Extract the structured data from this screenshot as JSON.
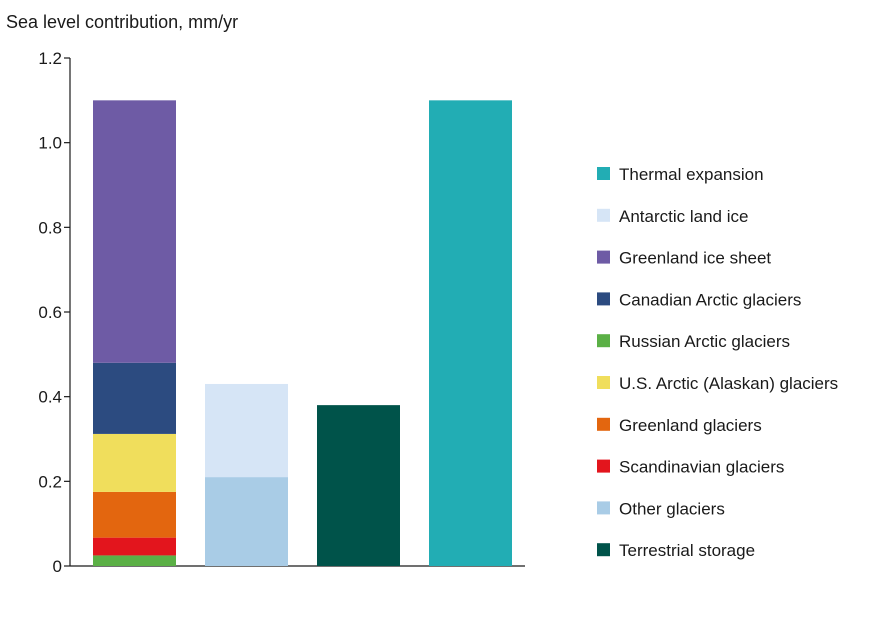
{
  "chart_data": {
    "type": "bar",
    "stacked": true,
    "title": "Sea level contribution, mm/yr",
    "ylabel": "",
    "xlabel": "",
    "ylim": [
      0,
      1.2
    ],
    "yticks": [
      "0",
      "0.2",
      "0.4",
      "0.6",
      "0.8",
      "1.0",
      "1.2"
    ],
    "ytick_values": [
      0,
      0.2,
      0.4,
      0.6,
      0.8,
      1.0,
      1.2
    ],
    "grid": false,
    "legend_position": "right",
    "legend": [
      {
        "name": "Thermal expansion",
        "color": "#22adb4"
      },
      {
        "name": "Antarctic land ice",
        "color": "#d6e5f6"
      },
      {
        "name": "Greenland ice sheet",
        "color": "#6e5ba5"
      },
      {
        "name": "Canadian Arctic glaciers",
        "color": "#2c4b80"
      },
      {
        "name": "Russian Arctic glaciers",
        "color": "#5bb046"
      },
      {
        "name": "U.S. Arctic (Alaskan) glaciers",
        "color": "#f0de5c"
      },
      {
        "name": "Greenland glaciers",
        "color": "#e3660f"
      },
      {
        "name": "Scandinavian glaciers",
        "color": "#e3151d"
      },
      {
        "name": "Other glaciers",
        "color": "#a9cce6"
      },
      {
        "name": "Terrestrial storage",
        "color": "#00534a"
      }
    ],
    "bars": [
      {
        "segments": [
          {
            "name": "Russian Arctic glaciers",
            "value": 0.025,
            "color": "#5bb046"
          },
          {
            "name": "Scandinavian glaciers",
            "value": 0.042,
            "color": "#e3151d"
          },
          {
            "name": "Greenland glaciers",
            "value": 0.108,
            "color": "#e3660f"
          },
          {
            "name": "U.S. Arctic (Alaskan) glaciers",
            "value": 0.137,
            "color": "#f0de5c"
          },
          {
            "name": "Canadian Arctic glaciers",
            "value": 0.168,
            "color": "#2c4b80"
          },
          {
            "name": "Greenland ice sheet",
            "value": 0.62,
            "color": "#6e5ba5"
          }
        ]
      },
      {
        "segments": [
          {
            "name": "Other glaciers",
            "value": 0.21,
            "color": "#a9cce6"
          },
          {
            "name": "Antarctic land ice",
            "value": 0.22,
            "color": "#d6e5f6"
          }
        ]
      },
      {
        "segments": [
          {
            "name": "Terrestrial storage",
            "value": 0.38,
            "color": "#00534a"
          }
        ]
      },
      {
        "segments": [
          {
            "name": "Thermal expansion",
            "value": 1.1,
            "color": "#22adb4"
          }
        ]
      }
    ]
  }
}
